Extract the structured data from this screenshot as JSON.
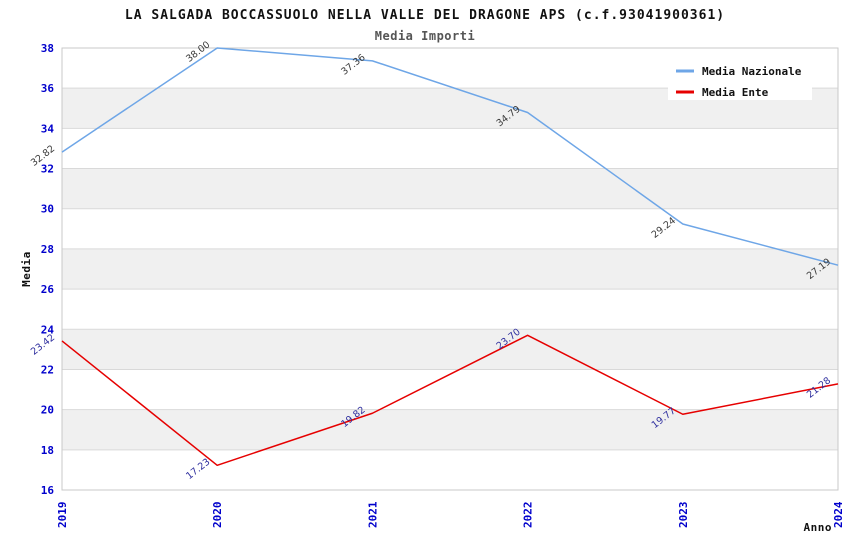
{
  "title": "LA SALGADA BOCCASSUOLO NELLA VALLE DEL DRAGONE APS (c.f.93041900361)",
  "subtitle": "Media Importi",
  "chart_data": {
    "type": "line",
    "x": [
      "2019",
      "2020",
      "2021",
      "2022",
      "2023",
      "2024"
    ],
    "series": [
      {
        "name": "Media Nazionale",
        "color": "#6ea6e7",
        "label_color": "#3a3a3a",
        "values": [
          32.82,
          38.0,
          37.36,
          34.79,
          29.24,
          27.19
        ]
      },
      {
        "name": "Media Ente",
        "color": "#e60000",
        "label_color": "#2e2e9e",
        "values": [
          23.42,
          17.23,
          19.82,
          23.7,
          19.77,
          21.28
        ]
      }
    ],
    "xlabel": "Anno",
    "ylabel": "Media",
    "ylim": [
      16,
      38
    ],
    "ytick_step": 2,
    "grid": true,
    "legend_position": "top-right",
    "band_color": "#f0f0f0",
    "gridline_color": "#d9d9d9",
    "frame_color": "#c9c9c9",
    "tick_label_color": "#0000cc"
  }
}
